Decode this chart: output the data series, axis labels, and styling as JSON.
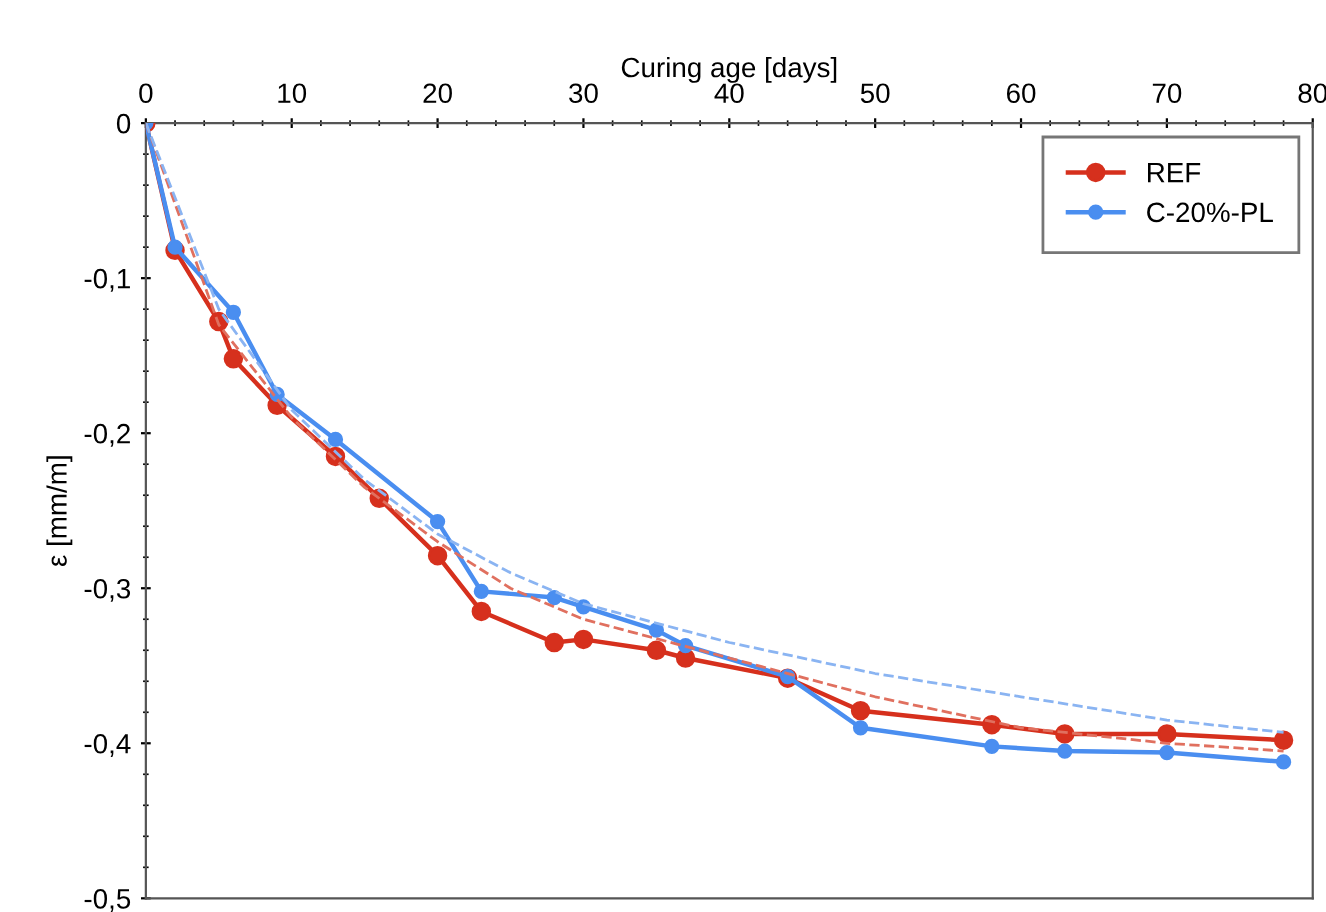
{
  "chart_data": {
    "type": "line",
    "xlabel": "Curing age [days]",
    "ylabel": "ε [mm/m]",
    "xlim": [
      0,
      80
    ],
    "xticks": [
      0,
      10,
      20,
      30,
      40,
      50,
      60,
      70,
      80
    ],
    "ylim": [
      -0.5,
      0
    ],
    "yticks": [
      {
        "value": -0.5,
        "label": "-0,5"
      },
      {
        "value": -0.4,
        "label": "-0,4"
      },
      {
        "value": -0.3,
        "label": "-0,3"
      },
      {
        "value": -0.2,
        "label": "-0,2"
      },
      {
        "value": -0.1,
        "label": "-0,1"
      },
      0
    ],
    "legend": "top right",
    "grid": false,
    "marker": "circle",
    "series": [
      {
        "name": "REF",
        "color": "#d6301d",
        "x": [
          0,
          2,
          5,
          6,
          9,
          13,
          16,
          20,
          23,
          28,
          30,
          35,
          37,
          44,
          49,
          58,
          63,
          70,
          78
        ],
        "values": [
          0,
          -0.082,
          -0.128,
          -0.152,
          -0.182,
          -0.215,
          -0.242,
          -0.279,
          -0.315,
          -0.335,
          -0.333,
          -0.34,
          -0.345,
          -0.358,
          -0.379,
          -0.388,
          -0.394,
          -0.394,
          -0.398
        ]
      },
      {
        "name": "C-20%-PL",
        "color": "#4a8ef0",
        "x": [
          0,
          2,
          6,
          9,
          13,
          20,
          23,
          28,
          30,
          35,
          37,
          44,
          49,
          58,
          63,
          70,
          78
        ],
        "values": [
          0,
          -0.08,
          -0.122,
          -0.175,
          -0.204,
          -0.257,
          -0.302,
          -0.306,
          -0.312,
          -0.327,
          -0.337,
          -0.357,
          -0.39,
          -0.402,
          -0.405,
          -0.406,
          -0.412
        ]
      },
      {
        "color": "#e0705f",
        "line_style": "dashed",
        "marker": "none",
        "x": [
          0,
          5,
          10,
          15,
          20,
          25,
          30,
          40,
          50,
          60,
          70,
          78
        ],
        "values": [
          0,
          -0.13,
          -0.19,
          -0.235,
          -0.27,
          -0.3,
          -0.32,
          -0.345,
          -0.37,
          -0.39,
          -0.4,
          -0.405
        ]
      },
      {
        "color": "#8ab4f2",
        "line_style": "dashed",
        "marker": "none",
        "x": [
          0,
          5,
          10,
          15,
          20,
          25,
          30,
          40,
          50,
          60,
          70,
          78
        ],
        "values": [
          0,
          -0.12,
          -0.185,
          -0.23,
          -0.265,
          -0.29,
          -0.31,
          -0.335,
          -0.355,
          -0.37,
          -0.385,
          -0.393
        ]
      }
    ]
  }
}
